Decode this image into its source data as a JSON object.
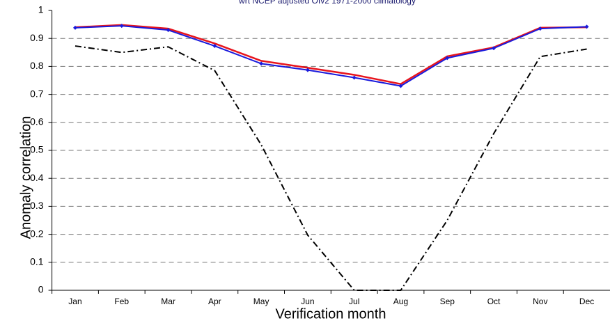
{
  "chart_data": {
    "type": "line",
    "title": "wrt NCEP adjusted OIv2 1971-2000 climatology",
    "xlabel": "Verification month",
    "ylabel": "Anomaly correlation",
    "categories": [
      "Jan",
      "Feb",
      "Mar",
      "Apr",
      "May",
      "Jun",
      "Jul",
      "Aug",
      "Sep",
      "Oct",
      "Nov",
      "Dec"
    ],
    "series": [
      {
        "color": "#e8141c",
        "values": [
          0.94,
          0.948,
          0.935,
          0.882,
          0.82,
          0.795,
          0.77,
          0.737,
          0.836,
          0.868,
          0.938,
          0.94
        ]
      },
      {
        "color": "#1a1adc",
        "values": [
          0.938,
          0.945,
          0.93,
          0.873,
          0.81,
          0.787,
          0.76,
          0.73,
          0.83,
          0.865,
          0.935,
          0.942
        ]
      },
      {
        "color": "#000000",
        "values": [
          0.873,
          0.85,
          0.87,
          0.785,
          0.52,
          0.197,
          0,
          0,
          0.25,
          0.56,
          0.835,
          0.862
        ]
      }
    ],
    "ylim": [
      0,
      1
    ],
    "yticks": [
      0,
      0.1,
      0.2,
      0.3,
      0.4,
      0.5,
      0.6,
      0.7,
      0.8,
      0.9,
      1
    ],
    "grid": true
  }
}
